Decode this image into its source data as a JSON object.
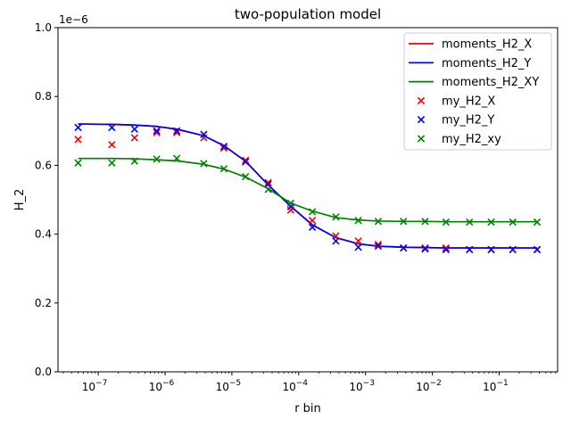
{
  "chart_data": {
    "type": "line",
    "title": "two-population model",
    "xlabel": "r bin",
    "ylabel": "H_2",
    "xscale": "log",
    "xlim": [
      2.5e-08,
      0.75
    ],
    "ylim": [
      0,
      1.0
    ],
    "y_scale_label": "1e−6",
    "y_ticks": [
      0.0,
      0.2,
      0.4,
      0.6,
      0.8,
      1.0
    ],
    "y_tick_labels": [
      "0.0",
      "0.2",
      "0.4",
      "0.6",
      "0.8",
      "1.0"
    ],
    "x_ticks": [
      1e-07,
      1e-06,
      1e-05,
      0.0001,
      0.001,
      0.01,
      0.1
    ],
    "x_tick_base": "10",
    "x_tick_exps": [
      "−7",
      "−6",
      "−5",
      "−4",
      "−3",
      "−2",
      "−1"
    ],
    "legend_position": "upper right",
    "x": [
      5e-08,
      1.6e-07,
      3.5e-07,
      7.5e-07,
      1.5e-06,
      3.8e-06,
      7.6e-06,
      1.6e-05,
      3.5e-05,
      7.6e-05,
      0.00016,
      0.00036,
      0.00078,
      0.00155,
      0.0037,
      0.0078,
      0.016,
      0.036,
      0.076,
      0.16,
      0.37
    ],
    "series": [
      {
        "name": "moments_H2_X",
        "kind": "line",
        "color": "#ff0000",
        "values": [
          0.72,
          0.719,
          0.717,
          0.713,
          0.705,
          0.686,
          0.657,
          0.612,
          0.543,
          0.481,
          0.427,
          0.39,
          0.372,
          0.365,
          0.362,
          0.361,
          0.36,
          0.36,
          0.36,
          0.36,
          0.36
        ]
      },
      {
        "name": "moments_H2_Y",
        "kind": "line",
        "color": "#0000ff",
        "values": [
          0.72,
          0.719,
          0.717,
          0.713,
          0.705,
          0.686,
          0.657,
          0.612,
          0.543,
          0.481,
          0.427,
          0.39,
          0.372,
          0.365,
          0.362,
          0.361,
          0.36,
          0.36,
          0.36,
          0.36,
          0.36
        ]
      },
      {
        "name": "moments_H2_XY",
        "kind": "line",
        "color": "#008000",
        "values": [
          0.62,
          0.62,
          0.619,
          0.616,
          0.613,
          0.603,
          0.589,
          0.566,
          0.532,
          0.49,
          0.467,
          0.448,
          0.441,
          0.438,
          0.437,
          0.437,
          0.436,
          0.436,
          0.436,
          0.436,
          0.436
        ]
      },
      {
        "name": "my_H2_X",
        "kind": "scatter",
        "color": "#ff0000",
        "values": [
          0.675,
          0.66,
          0.68,
          0.695,
          0.695,
          0.68,
          0.65,
          0.615,
          0.55,
          0.47,
          0.44,
          0.395,
          0.38,
          0.37,
          0.36,
          0.36,
          0.36,
          0.355,
          0.355,
          0.355,
          0.355
        ]
      },
      {
        "name": "my_H2_Y",
        "kind": "scatter",
        "color": "#0000ff",
        "values": [
          0.71,
          0.71,
          0.705,
          0.7,
          0.7,
          0.69,
          0.655,
          0.61,
          0.545,
          0.48,
          0.42,
          0.38,
          0.362,
          0.365,
          0.36,
          0.357,
          0.355,
          0.355,
          0.355,
          0.355,
          0.355
        ]
      },
      {
        "name": "my_H2_xy",
        "kind": "scatter",
        "color": "#008000",
        "values": [
          0.607,
          0.607,
          0.612,
          0.618,
          0.62,
          0.605,
          0.59,
          0.567,
          0.53,
          0.49,
          0.465,
          0.45,
          0.44,
          0.437,
          0.437,
          0.437,
          0.435,
          0.435,
          0.435,
          0.435,
          0.435
        ]
      }
    ]
  }
}
